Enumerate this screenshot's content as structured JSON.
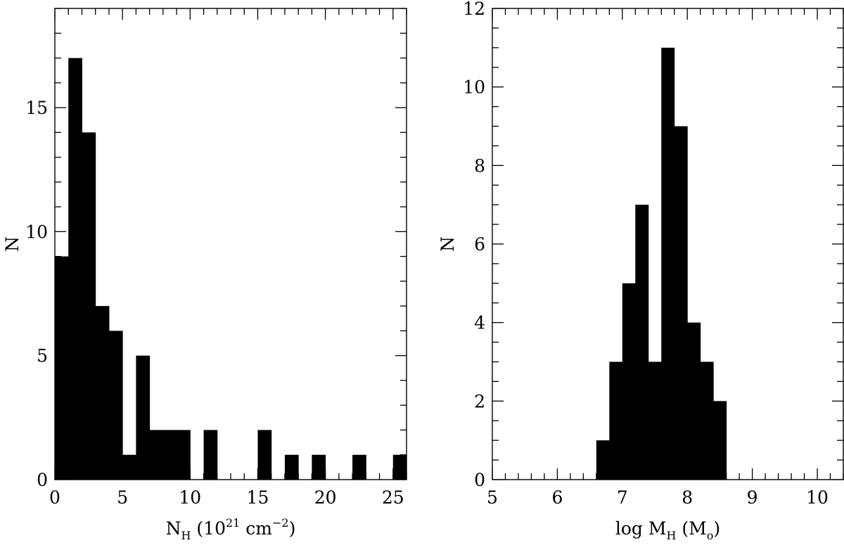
{
  "chart_data": [
    {
      "type": "bar",
      "title": "",
      "xlabel": {
        "base": "N",
        "sub": "H",
        "unit_pre": "(10",
        "unit_sup": "21",
        "unit_mid": " cm",
        "unit_sup2": "−2",
        "unit_post": ")"
      },
      "ylabel": "N",
      "xlim": [
        0,
        26
      ],
      "ylim": [
        0,
        19
      ],
      "x_ticks": [
        0,
        5,
        10,
        15,
        20,
        25
      ],
      "y_ticks": [
        0,
        5,
        10,
        15
      ],
      "x_minor_step": 1,
      "y_minor_step": 1,
      "bin_width": 1,
      "bins": [
        {
          "x0": 0,
          "count": 9
        },
        {
          "x0": 1,
          "count": 17
        },
        {
          "x0": 2,
          "count": 14
        },
        {
          "x0": 3,
          "count": 7
        },
        {
          "x0": 4,
          "count": 6
        },
        {
          "x0": 5,
          "count": 1
        },
        {
          "x0": 6,
          "count": 5
        },
        {
          "x0": 7,
          "count": 2
        },
        {
          "x0": 8,
          "count": 2
        },
        {
          "x0": 9,
          "count": 2
        },
        {
          "x0": 11,
          "count": 2
        },
        {
          "x0": 15,
          "count": 2
        },
        {
          "x0": 17,
          "count": 1
        },
        {
          "x0": 19,
          "count": 1
        },
        {
          "x0": 22,
          "count": 1
        },
        {
          "x0": 25,
          "count": 1
        }
      ],
      "grid": false,
      "color": "#000000"
    },
    {
      "type": "bar",
      "title": "",
      "xlabel": {
        "pre": "log M",
        "sub": "H",
        "post_open": " (M",
        "post_sub": "o",
        "post_close": ")"
      },
      "ylabel": "N",
      "xlim": [
        5,
        10.4
      ],
      "ylim": [
        0,
        12
      ],
      "x_ticks": [
        5,
        6,
        7,
        8,
        9,
        10
      ],
      "y_ticks": [
        0,
        2,
        4,
        6,
        8,
        10,
        12
      ],
      "x_minor_step": 0.2,
      "y_minor_step": 0.5,
      "bin_width": 0.2,
      "bins": [
        {
          "x0": 6.6,
          "count": 1
        },
        {
          "x0": 6.8,
          "count": 3
        },
        {
          "x0": 7.0,
          "count": 5
        },
        {
          "x0": 7.2,
          "count": 7
        },
        {
          "x0": 7.4,
          "count": 3
        },
        {
          "x0": 7.6,
          "count": 11
        },
        {
          "x0": 7.8,
          "count": 9
        },
        {
          "x0": 8.0,
          "count": 4
        },
        {
          "x0": 8.2,
          "count": 3
        },
        {
          "x0": 8.4,
          "count": 2
        }
      ],
      "grid": false,
      "color": "#000000"
    }
  ]
}
